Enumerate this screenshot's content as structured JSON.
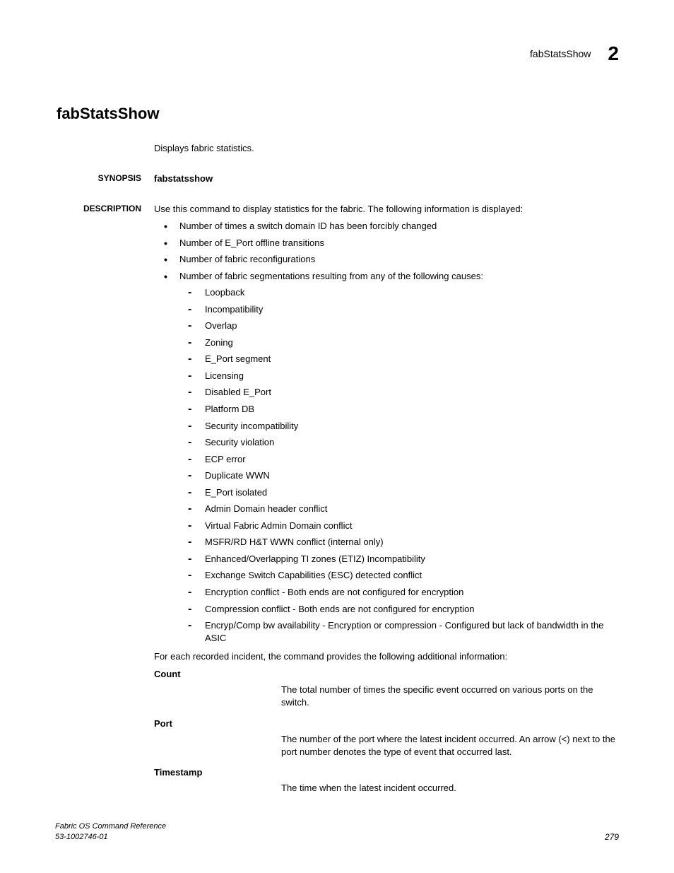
{
  "header": {
    "label": "fabStatsShow",
    "chapter": "2"
  },
  "title": "fabStatsShow",
  "intro": "Displays fabric statistics.",
  "synopsis": {
    "label": "SYNOPSIS",
    "command": "fabstatsshow"
  },
  "description": {
    "label": "DESCRIPTION",
    "lead": "Use this command to display statistics for the fabric. The following information is displayed:",
    "bullets": [
      "Number of times a switch domain ID has been forcibly changed",
      "Number of E_Port offline transitions",
      "Number of fabric reconfigurations",
      "Number of fabric segmentations resulting from any of the following causes:"
    ],
    "causes": [
      "Loopback",
      "Incompatibility",
      "Overlap",
      "Zoning",
      "E_Port segment",
      "Licensing",
      "Disabled E_Port",
      "Platform DB",
      "Security incompatibility",
      "Security violation",
      "ECP error",
      "Duplicate WWN",
      "E_Port isolated",
      "Admin Domain header conflict",
      "Virtual Fabric Admin Domain conflict",
      "MSFR/RD H&T WWN conflict (internal only)",
      "Enhanced/Overlapping TI zones (ETIZ) Incompatibility",
      "Exchange Switch Capabilities (ESC) detected conflict",
      "Encryption conflict - Both ends are not configured for encryption",
      "Compression conflict - Both ends are not configured for encryption",
      "Encryp/Comp bw availability - Encryption or compression - Configured but lack of bandwidth in the ASIC"
    ],
    "followup": "For each recorded incident, the command provides the following additional information:",
    "defs": [
      {
        "term": "Count",
        "def": "The total number of times the specific event occurred on various ports on the switch."
      },
      {
        "term": "Port",
        "def": "The number of the port where the latest incident occurred. An arrow (<) next to the port number denotes the type of event that occurred last."
      },
      {
        "term": "Timestamp",
        "def": "The time when the latest incident occurred."
      }
    ]
  },
  "footer": {
    "line1": "Fabric OS Command Reference",
    "line2": "53-1002746-01",
    "page": "279"
  }
}
